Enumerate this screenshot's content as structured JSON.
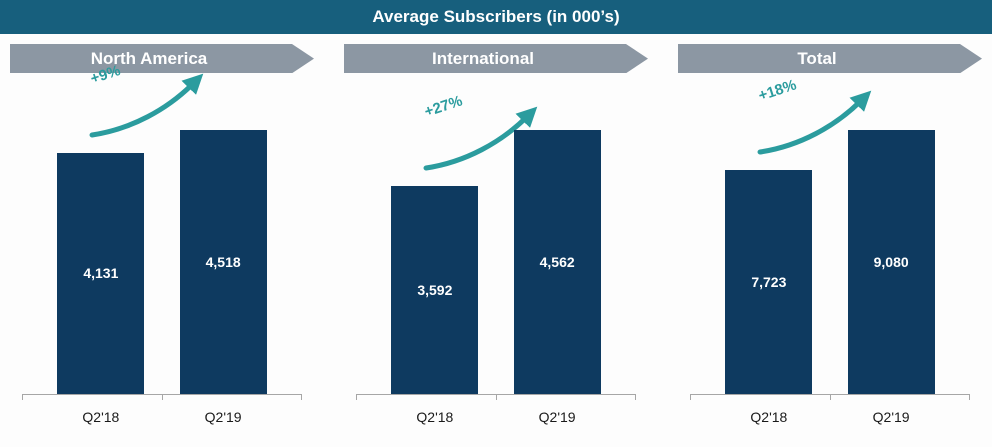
{
  "title": "Average Subscribers (in 000’s)",
  "colors": {
    "title_bg": "#175f7d",
    "panel_header_bg": "#8c97a3",
    "bar": "#0e3a60",
    "arrow": "#2b9c9e",
    "axis": "#a6a6a6"
  },
  "chart_data": {
    "type": "bar",
    "title": "Average Subscribers (in 000’s)",
    "categories": [
      "Q2'18",
      "Q2'19"
    ],
    "legend": "none",
    "grid": false,
    "value_axis_visible": false,
    "panels": [
      {
        "label": "North America",
        "values": [
          4131,
          4518
        ],
        "value_labels": [
          "4,131",
          "4,518"
        ],
        "growth": "+9%"
      },
      {
        "label": "International",
        "values": [
          3592,
          4562
        ],
        "value_labels": [
          "3,592",
          "4,562"
        ],
        "growth": "+27%"
      },
      {
        "label": "Total",
        "values": [
          7723,
          9080
        ],
        "value_labels": [
          "7,723",
          "9,080"
        ],
        "growth": "+18%"
      }
    ]
  }
}
